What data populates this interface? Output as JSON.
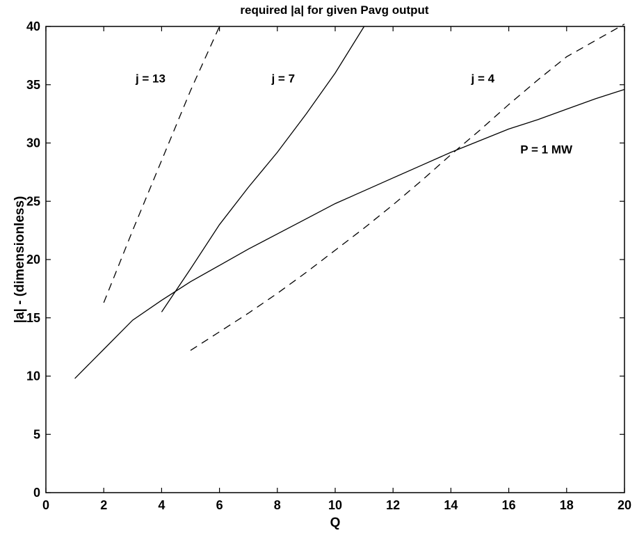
{
  "chart_data": {
    "type": "line",
    "title": "required |a| for given Pavg output",
    "xlabel": "Q",
    "ylabel": "|a|  - (dimensionless)",
    "xlim": [
      0,
      20
    ],
    "ylim": [
      0,
      40
    ],
    "xticks": [
      0,
      2,
      4,
      6,
      8,
      10,
      12,
      14,
      16,
      18,
      20
    ],
    "yticks": [
      0,
      5,
      10,
      15,
      20,
      25,
      30,
      35,
      40
    ],
    "grid": false,
    "series": [
      {
        "name": "",
        "style": "solid",
        "x": [
          1,
          2,
          3,
          4,
          5,
          6,
          7,
          8,
          9,
          10,
          11,
          12,
          13,
          14,
          15,
          16,
          17,
          18,
          19,
          20
        ],
        "y": [
          9.8,
          12.3,
          14.8,
          16.5,
          18.1,
          19.5,
          20.9,
          22.2,
          23.5,
          24.8,
          25.9,
          27.0,
          28.1,
          29.2,
          30.2,
          31.2,
          32.0,
          32.9,
          33.8,
          34.6
        ]
      },
      {
        "name": "",
        "style": "dashed",
        "x": [
          2,
          3,
          4,
          5,
          6
        ],
        "y": [
          16.3,
          22.5,
          28.5,
          34.5,
          40.0
        ]
      },
      {
        "name": "",
        "style": "solid",
        "x": [
          4,
          5,
          6,
          7,
          8,
          9,
          10,
          11
        ],
        "y": [
          15.5,
          19.2,
          23.0,
          26.2,
          29.2,
          32.5,
          36.0,
          40.0
        ]
      },
      {
        "name": "",
        "style": "dashed",
        "x": [
          5,
          6,
          7,
          8,
          9,
          10,
          11,
          12,
          13,
          14,
          15,
          16,
          17,
          18,
          19,
          20
        ],
        "y": [
          12.2,
          13.8,
          15.4,
          17.1,
          18.9,
          20.8,
          22.7,
          24.7,
          26.8,
          29.0,
          31.1,
          33.3,
          35.4,
          37.4,
          38.8,
          40.2
        ]
      }
    ],
    "annotations": [
      {
        "text": "j = 13",
        "x": 3.1,
        "y": 35.2
      },
      {
        "text": "j = 7",
        "x": 7.8,
        "y": 35.2
      },
      {
        "text": "j = 4",
        "x": 14.7,
        "y": 35.2
      },
      {
        "text": "P = 1 MW",
        "x": 16.4,
        "y": 29.1
      }
    ]
  }
}
